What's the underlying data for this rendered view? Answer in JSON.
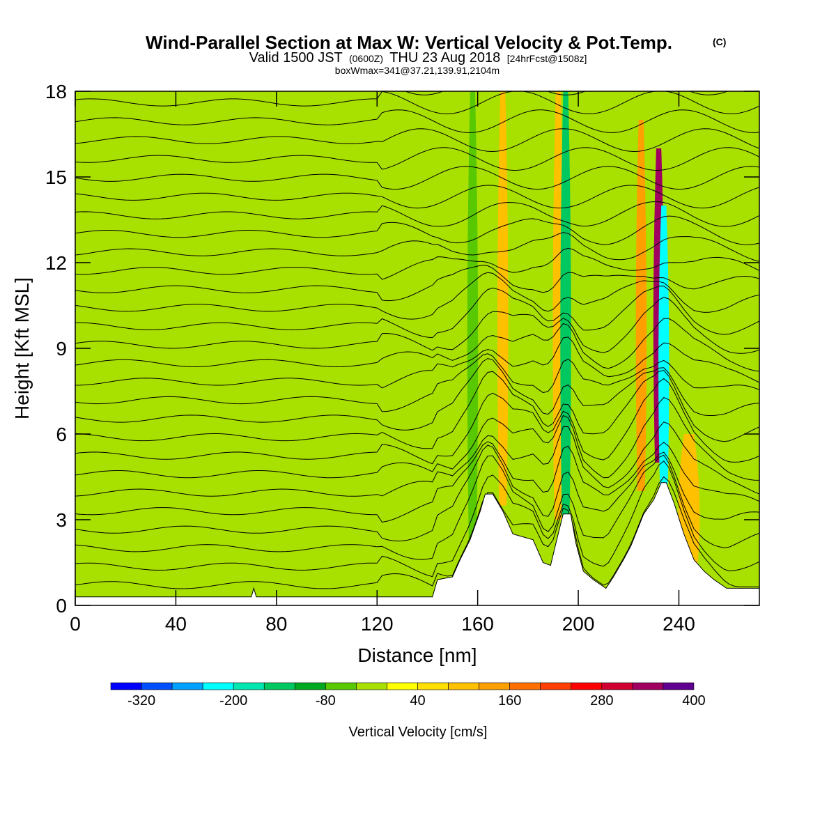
{
  "header": {
    "title": "Wind-Parallel Section at Max W: Vertical Velocity & Pot.Temp.",
    "title_mark": "(C)",
    "valid_prefix": "Valid 1500 JST",
    "valid_utc": "(0600Z)",
    "valid_date": "THU 23 Aug 2018",
    "forecast": "[24hrFcst@1508z]",
    "box_info": "boxWmax=341@37.21,139.91,2104m"
  },
  "chart_data": {
    "type": "heatmap",
    "xlabel": "Distance [nm]",
    "ylabel": "Height [Kft MSL]",
    "xlim": [
      0,
      272
    ],
    "ylim": [
      0,
      18
    ],
    "x_ticks": [
      0,
      40,
      80,
      120,
      160,
      200,
      240
    ],
    "y_ticks": [
      0,
      3,
      6,
      9,
      12,
      15,
      18
    ],
    "x_tick_labels": [
      "0",
      "40",
      "80",
      "120",
      "160",
      "200",
      "240"
    ],
    "y_tick_labels": [
      "0",
      "3",
      "6",
      "9",
      "12",
      "15",
      "18"
    ],
    "background_level_cms": 20,
    "terrain_kft": [
      [
        0,
        0.3
      ],
      [
        70,
        0.3
      ],
      [
        71,
        0.6
      ],
      [
        72,
        0.3
      ],
      [
        142,
        0.3
      ],
      [
        144,
        0.9
      ],
      [
        150,
        1.0
      ],
      [
        153,
        1.6
      ],
      [
        157,
        2.3
      ],
      [
        161,
        3.3
      ],
      [
        163,
        3.9
      ],
      [
        166,
        3.9
      ],
      [
        170,
        3.3
      ],
      [
        174,
        2.5
      ],
      [
        178,
        2.4
      ],
      [
        182,
        2.3
      ],
      [
        186,
        1.5
      ],
      [
        189,
        1.4
      ],
      [
        192,
        2.5
      ],
      [
        194,
        3.2
      ],
      [
        197,
        3.2
      ],
      [
        199,
        2.2
      ],
      [
        202,
        1.2
      ],
      [
        206,
        0.9
      ],
      [
        211,
        0.6
      ],
      [
        214,
        1.0
      ],
      [
        218,
        1.6
      ],
      [
        221,
        2.1
      ],
      [
        226,
        3.2
      ],
      [
        230,
        3.7
      ],
      [
        233,
        4.3
      ],
      [
        235,
        4.3
      ],
      [
        238,
        3.6
      ],
      [
        242,
        2.5
      ],
      [
        246,
        1.6
      ],
      [
        250,
        1.2
      ],
      [
        254,
        0.9
      ],
      [
        259,
        0.6
      ],
      [
        262,
        0.6
      ],
      [
        272,
        0.6
      ]
    ],
    "velocity_features": [
      {
        "x": 30,
        "z_bottom": 0.3,
        "z_top": 18,
        "width_nm": 12,
        "value_cms": -40
      },
      {
        "x": 60,
        "z_bottom": 0.3,
        "z_top": 15,
        "width_nm": 6,
        "value_cms": -40
      },
      {
        "x": 80,
        "z_bottom": 0.3,
        "z_top": 18,
        "width_nm": 5,
        "value_cms": -40
      },
      {
        "x": 105,
        "z_bottom": 0.3,
        "z_top": 17,
        "width_nm": 6,
        "value_cms": -40
      },
      {
        "x": 140,
        "z_bottom": 0.3,
        "z_top": 18,
        "width_nm": 4,
        "value_cms": -40
      },
      {
        "x": 158,
        "z_bottom": 2,
        "z_top": 18,
        "width_nm": 3,
        "value_cms": -80
      },
      {
        "x": 170,
        "z_bottom": 3.5,
        "z_top": 18,
        "width_nm": 3,
        "value_cms": 80
      },
      {
        "x": 192,
        "z_bottom": 3,
        "z_top": 18,
        "width_nm": 3,
        "value_cms": 100
      },
      {
        "x": 195,
        "z_bottom": 3,
        "z_top": 18,
        "width_nm": 3,
        "value_cms": -160
      },
      {
        "x": 225,
        "z_bottom": 4,
        "z_top": 17,
        "width_nm": 3,
        "value_cms": 140
      },
      {
        "x": 232,
        "z_bottom": 5,
        "z_top": 16,
        "width_nm": 3,
        "value_cms": 341
      },
      {
        "x": 234,
        "z_bottom": 4,
        "z_top": 14,
        "width_nm": 3,
        "value_cms": -240
      },
      {
        "x": 244,
        "z_bottom": 1,
        "z_top": 6,
        "width_nm": 6,
        "value_cms": 80
      }
    ],
    "colorbar": {
      "title": "Vertical Velocity [cm/s]",
      "levels": [
        -360,
        -320,
        -280,
        -240,
        -200,
        -160,
        -120,
        -80,
        -40,
        0,
        40,
        80,
        120,
        160,
        200,
        240,
        280,
        320,
        360,
        400,
        440
      ],
      "colors": [
        "#0000ff",
        "#0050ff",
        "#00a0ff",
        "#00ffff",
        "#00e8b0",
        "#00c860",
        "#00a820",
        "#58c800",
        "#a8e000",
        "#ffff00",
        "#ffe000",
        "#ffc000",
        "#ffa000",
        "#ff7000",
        "#ff4000",
        "#ff0000",
        "#d00030",
        "#a00060",
        "#600090"
      ],
      "tick_values": [
        -320,
        -200,
        -80,
        40,
        160,
        280,
        400
      ],
      "tick_labels": [
        "-320",
        "-200",
        "-80",
        "40",
        "160",
        "280",
        "400"
      ]
    }
  }
}
